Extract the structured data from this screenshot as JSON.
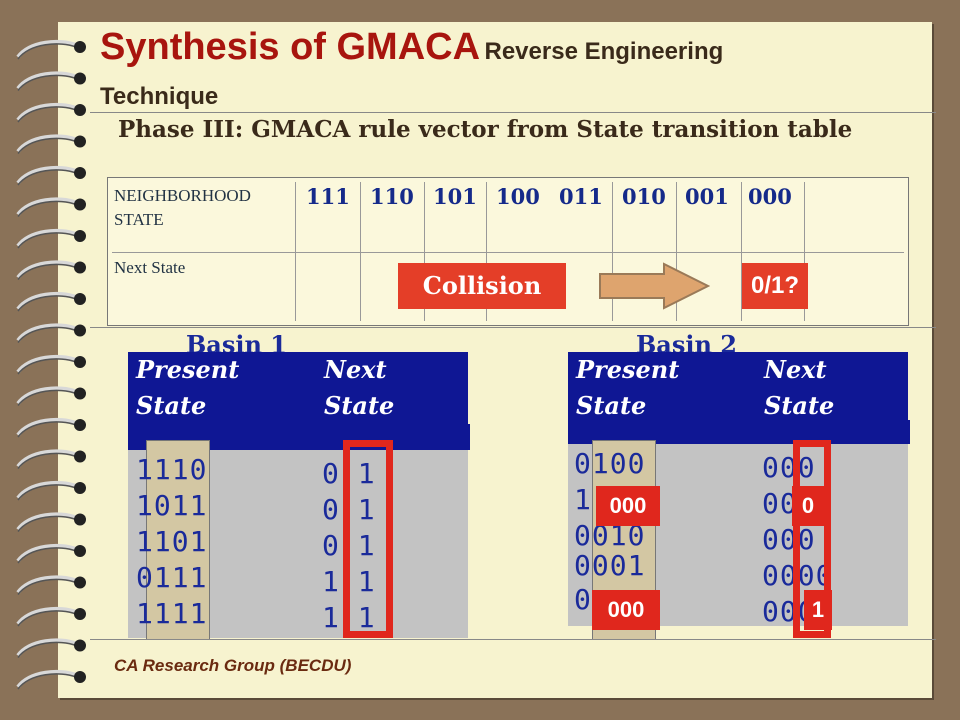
{
  "title": {
    "main": "Synthesis of GMACA",
    "sub1": "Reverse Engineering",
    "sub2": "Technique"
  },
  "phase": "Phase III: GMACA rule vector from State transition table",
  "table": {
    "row1_label_line1": "NEIGHBORHOOD",
    "row1_label_line2": "STATE",
    "row2_label": "Next State",
    "neighborhoods": [
      "111",
      "110",
      "101",
      "100",
      "011",
      "010",
      "001",
      "000"
    ]
  },
  "collision_label": "Collision",
  "result_label": "0/1?",
  "basin1": {
    "title": "Basin 1",
    "present_header_1": "Present",
    "present_header_2": "State",
    "next_header_1": "Next",
    "next_header_2": "State",
    "present": [
      "1110",
      "1011",
      "1101",
      "0111",
      "1111"
    ],
    "next": [
      "0 1",
      "0 1",
      "0 1",
      "1 1",
      "1 1"
    ]
  },
  "basin2": {
    "title": "Basin 2",
    "present_header_1": "Present",
    "present_header_2": "State",
    "next_header_1": "Next",
    "next_header_2": "State",
    "present": [
      "0100",
      "1",
      "0010",
      "0001",
      "0"
    ],
    "next": [
      "000",
      "000",
      "000",
      "0000",
      "000"
    ],
    "tag_left_1": "000",
    "tag_left_2": "000",
    "tag_right_1": "0",
    "tag_right_2": "1"
  },
  "footer": "CA Research Group (BECDU)",
  "colors": {
    "title": "#a8150e",
    "header_bg": "#0f1794",
    "highlight": "#e0271d",
    "page": "#f7f3cf"
  }
}
